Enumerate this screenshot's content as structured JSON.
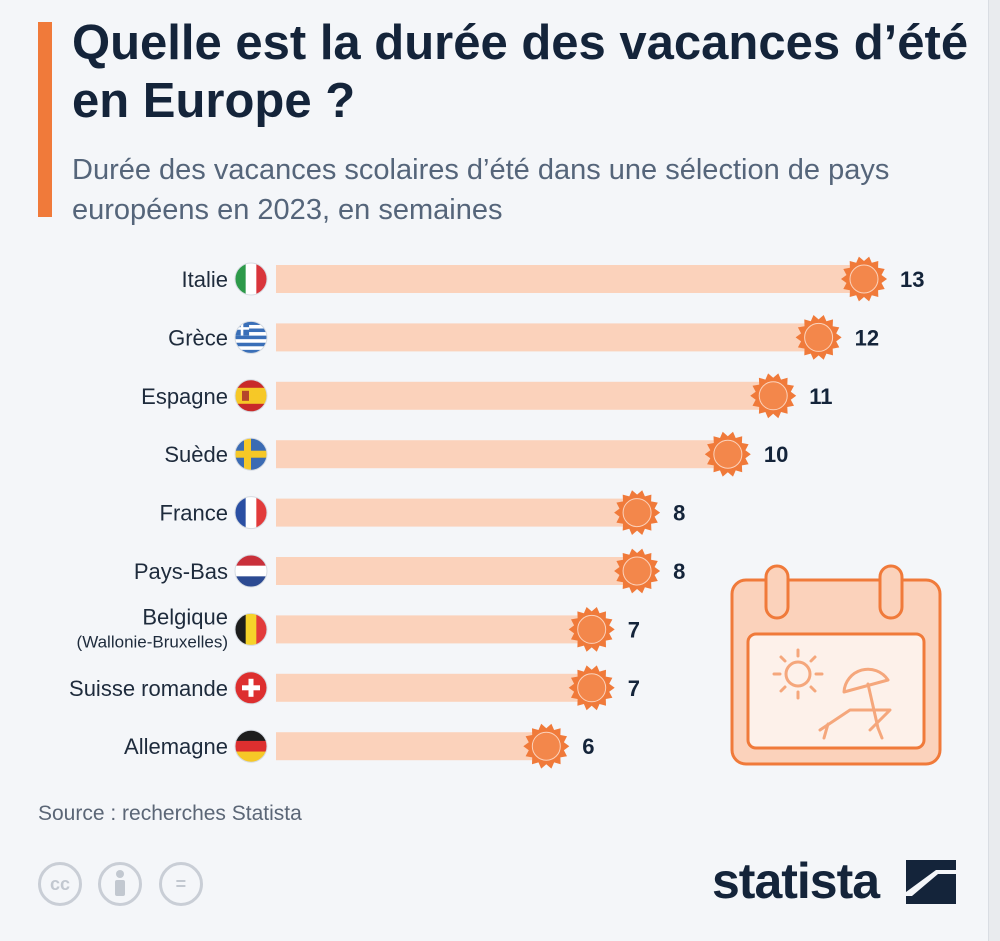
{
  "title": "Quelle est la durée des vacances d’été en Europe ?",
  "subtitle": "Durée des vacances scolaires d’été dans une sélection de pays européens en 2023, en semaines",
  "source": "Source : recherches Statista",
  "logo": "statista",
  "colors": {
    "accent": "#f07a3a",
    "bar": "#fbd2bb",
    "sun": "#f07a3a",
    "text_dark": "#14243a",
    "text_muted": "#55657a"
  },
  "icons": [
    "cc-icon",
    "attribution-icon",
    "no-derivatives-icon",
    "calendar-beach-icon",
    "statista-logo-icon"
  ],
  "cc_labels": {
    "cc": "cc",
    "nd": "="
  },
  "chart_data": {
    "type": "bar",
    "orientation": "horizontal",
    "title": "Quelle est la durée des vacances d’été en Europe ?",
    "unit": "semaines",
    "xlim": [
      0,
      13
    ],
    "categories": [
      {
        "name": "Italie",
        "sub": "",
        "flag": "it",
        "value": 13
      },
      {
        "name": "Grèce",
        "sub": "",
        "flag": "gr",
        "value": 12
      },
      {
        "name": "Espagne",
        "sub": "",
        "flag": "es",
        "value": 11
      },
      {
        "name": "Suède",
        "sub": "",
        "flag": "se",
        "value": 10
      },
      {
        "name": "France",
        "sub": "",
        "flag": "fr",
        "value": 8
      },
      {
        "name": "Pays-Bas",
        "sub": "",
        "flag": "nl",
        "value": 8
      },
      {
        "name": "Belgique",
        "sub": "(Wallonie-Bruxelles)",
        "flag": "be",
        "value": 7
      },
      {
        "name": "Suisse romande",
        "sub": "",
        "flag": "ch",
        "value": 7
      },
      {
        "name": "Allemagne",
        "sub": "",
        "flag": "de",
        "value": 6
      }
    ]
  }
}
